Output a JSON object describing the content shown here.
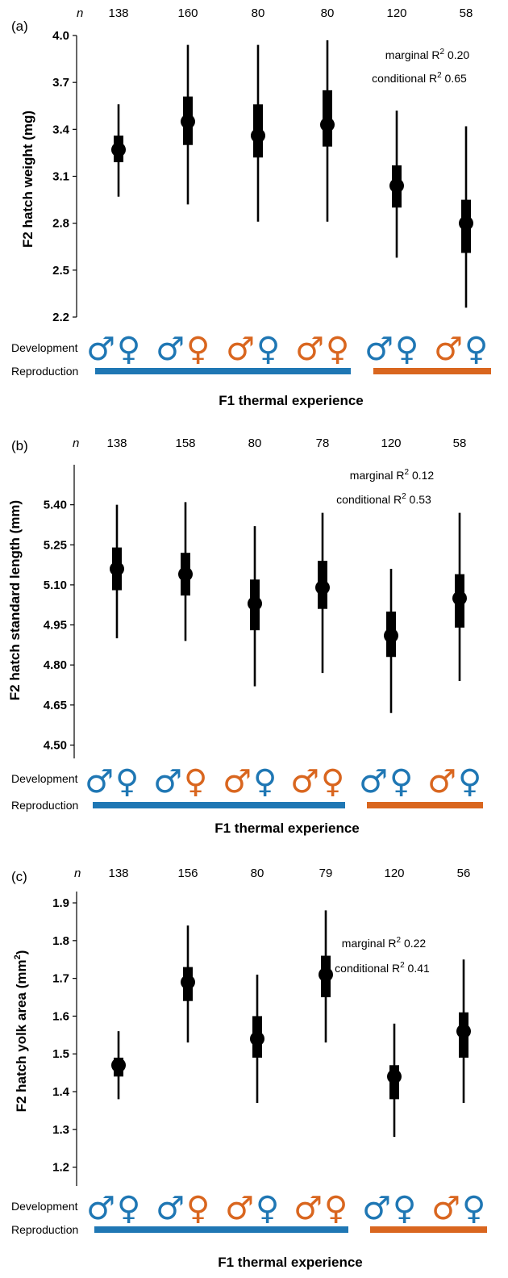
{
  "colors": {
    "blue": "#1f77b4",
    "orange": "#d9661f",
    "ink": "#000000"
  },
  "shared": {
    "n_header": "n",
    "dev_label": "Development",
    "rep_label": "Reproduction",
    "xlabel": "F1 thermal experience",
    "male": "♂",
    "female": "♀",
    "groups": [
      {
        "male": "blue",
        "female": "blue"
      },
      {
        "male": "blue",
        "female": "orange"
      },
      {
        "male": "orange",
        "female": "blue"
      },
      {
        "male": "orange",
        "female": "orange"
      },
      {
        "male": "blue",
        "female": "blue"
      },
      {
        "male": "orange",
        "female": "blue"
      }
    ],
    "reproduction_bars": [
      {
        "from": 0,
        "to": 3,
        "color": "blue"
      },
      {
        "from": 4,
        "to": 5,
        "color": "orange"
      }
    ]
  },
  "panels": [
    {
      "panel_label": "(a)",
      "ylabel": "F2 hatch weight (mg)",
      "r2": {
        "marginal": "marginal R",
        "marginal_value": " 0.20",
        "conditional": "conditional R",
        "conditional_value": " 0.65",
        "sup": "2"
      }
    },
    {
      "panel_label": "(b)",
      "ylabel": "F2 hatch standard length (mm)",
      "r2": {
        "marginal": "marginal R",
        "marginal_value": " 0.12",
        "conditional": "conditional R",
        "conditional_value": " 0.53",
        "sup": "2"
      }
    },
    {
      "panel_label": "(c)",
      "ylabel_main": "F2 hatch yolk area (mm",
      "ylabel_sup": "2",
      "ylabel_end": ")",
      "r2": {
        "marginal": "marginal R",
        "marginal_value": " 0.22",
        "conditional": "conditional R",
        "conditional_value": " 0.41",
        "sup": "2"
      }
    }
  ],
  "chart_data": [
    {
      "type": "scatter",
      "title": "",
      "xlabel": "F1 thermal experience",
      "ylabel": "F2 hatch weight (mg)",
      "ylim": [
        2.2,
        4.0
      ],
      "yticks": [
        "2.2",
        "2.5",
        "2.8",
        "3.1",
        "3.4",
        "3.7",
        "4.0"
      ],
      "n": [
        "138",
        "160",
        "80",
        "80",
        "120",
        "58"
      ],
      "estimate": [
        3.27,
        3.45,
        3.36,
        3.43,
        3.04,
        2.8
      ],
      "ci_inner": [
        [
          3.19,
          3.36
        ],
        [
          3.3,
          3.61
        ],
        [
          3.22,
          3.56
        ],
        [
          3.29,
          3.65
        ],
        [
          2.9,
          3.17
        ],
        [
          2.61,
          2.95
        ]
      ],
      "ci_outer": [
        [
          2.97,
          3.56
        ],
        [
          2.92,
          3.94
        ],
        [
          2.81,
          3.94
        ],
        [
          2.81,
          3.97
        ],
        [
          2.58,
          3.52
        ],
        [
          2.26,
          3.42
        ]
      ]
    },
    {
      "type": "scatter",
      "title": "",
      "xlabel": "F1 thermal experience",
      "ylabel": "F2 hatch standard length (mm)",
      "ylim": [
        4.45,
        5.55
      ],
      "yticks": [
        "4.50",
        "4.65",
        "4.80",
        "4.95",
        "5.10",
        "5.25",
        "5.40"
      ],
      "n": [
        "138",
        "158",
        "80",
        "78",
        "120",
        "58"
      ],
      "estimate": [
        5.16,
        5.14,
        5.03,
        5.09,
        4.91,
        5.05
      ],
      "ci_inner": [
        [
          5.08,
          5.24
        ],
        [
          5.06,
          5.22
        ],
        [
          4.93,
          5.12
        ],
        [
          5.01,
          5.19
        ],
        [
          4.83,
          5.0
        ],
        [
          4.94,
          5.14
        ]
      ],
      "ci_outer": [
        [
          4.9,
          5.4
        ],
        [
          4.89,
          5.41
        ],
        [
          4.72,
          5.32
        ],
        [
          4.77,
          5.37
        ],
        [
          4.62,
          5.16
        ],
        [
          4.74,
          5.37
        ]
      ]
    },
    {
      "type": "scatter",
      "title": "",
      "xlabel": "F1 thermal experience",
      "ylabel": "F2 hatch yolk area (mm2)",
      "ylim": [
        1.15,
        1.93
      ],
      "yticks": [
        "1.2",
        "1.3",
        "1.4",
        "1.5",
        "1.6",
        "1.7",
        "1.8",
        "1.9"
      ],
      "n": [
        "138",
        "156",
        "80",
        "79",
        "120",
        "56"
      ],
      "estimate": [
        1.47,
        1.69,
        1.54,
        1.71,
        1.44,
        1.56
      ],
      "ci_inner": [
        [
          1.44,
          1.49
        ],
        [
          1.64,
          1.73
        ],
        [
          1.49,
          1.6
        ],
        [
          1.65,
          1.76
        ],
        [
          1.38,
          1.47
        ],
        [
          1.49,
          1.61
        ]
      ],
      "ci_outer": [
        [
          1.38,
          1.56
        ],
        [
          1.53,
          1.84
        ],
        [
          1.37,
          1.71
        ],
        [
          1.53,
          1.88
        ],
        [
          1.28,
          1.58
        ],
        [
          1.37,
          1.75
        ]
      ]
    }
  ]
}
